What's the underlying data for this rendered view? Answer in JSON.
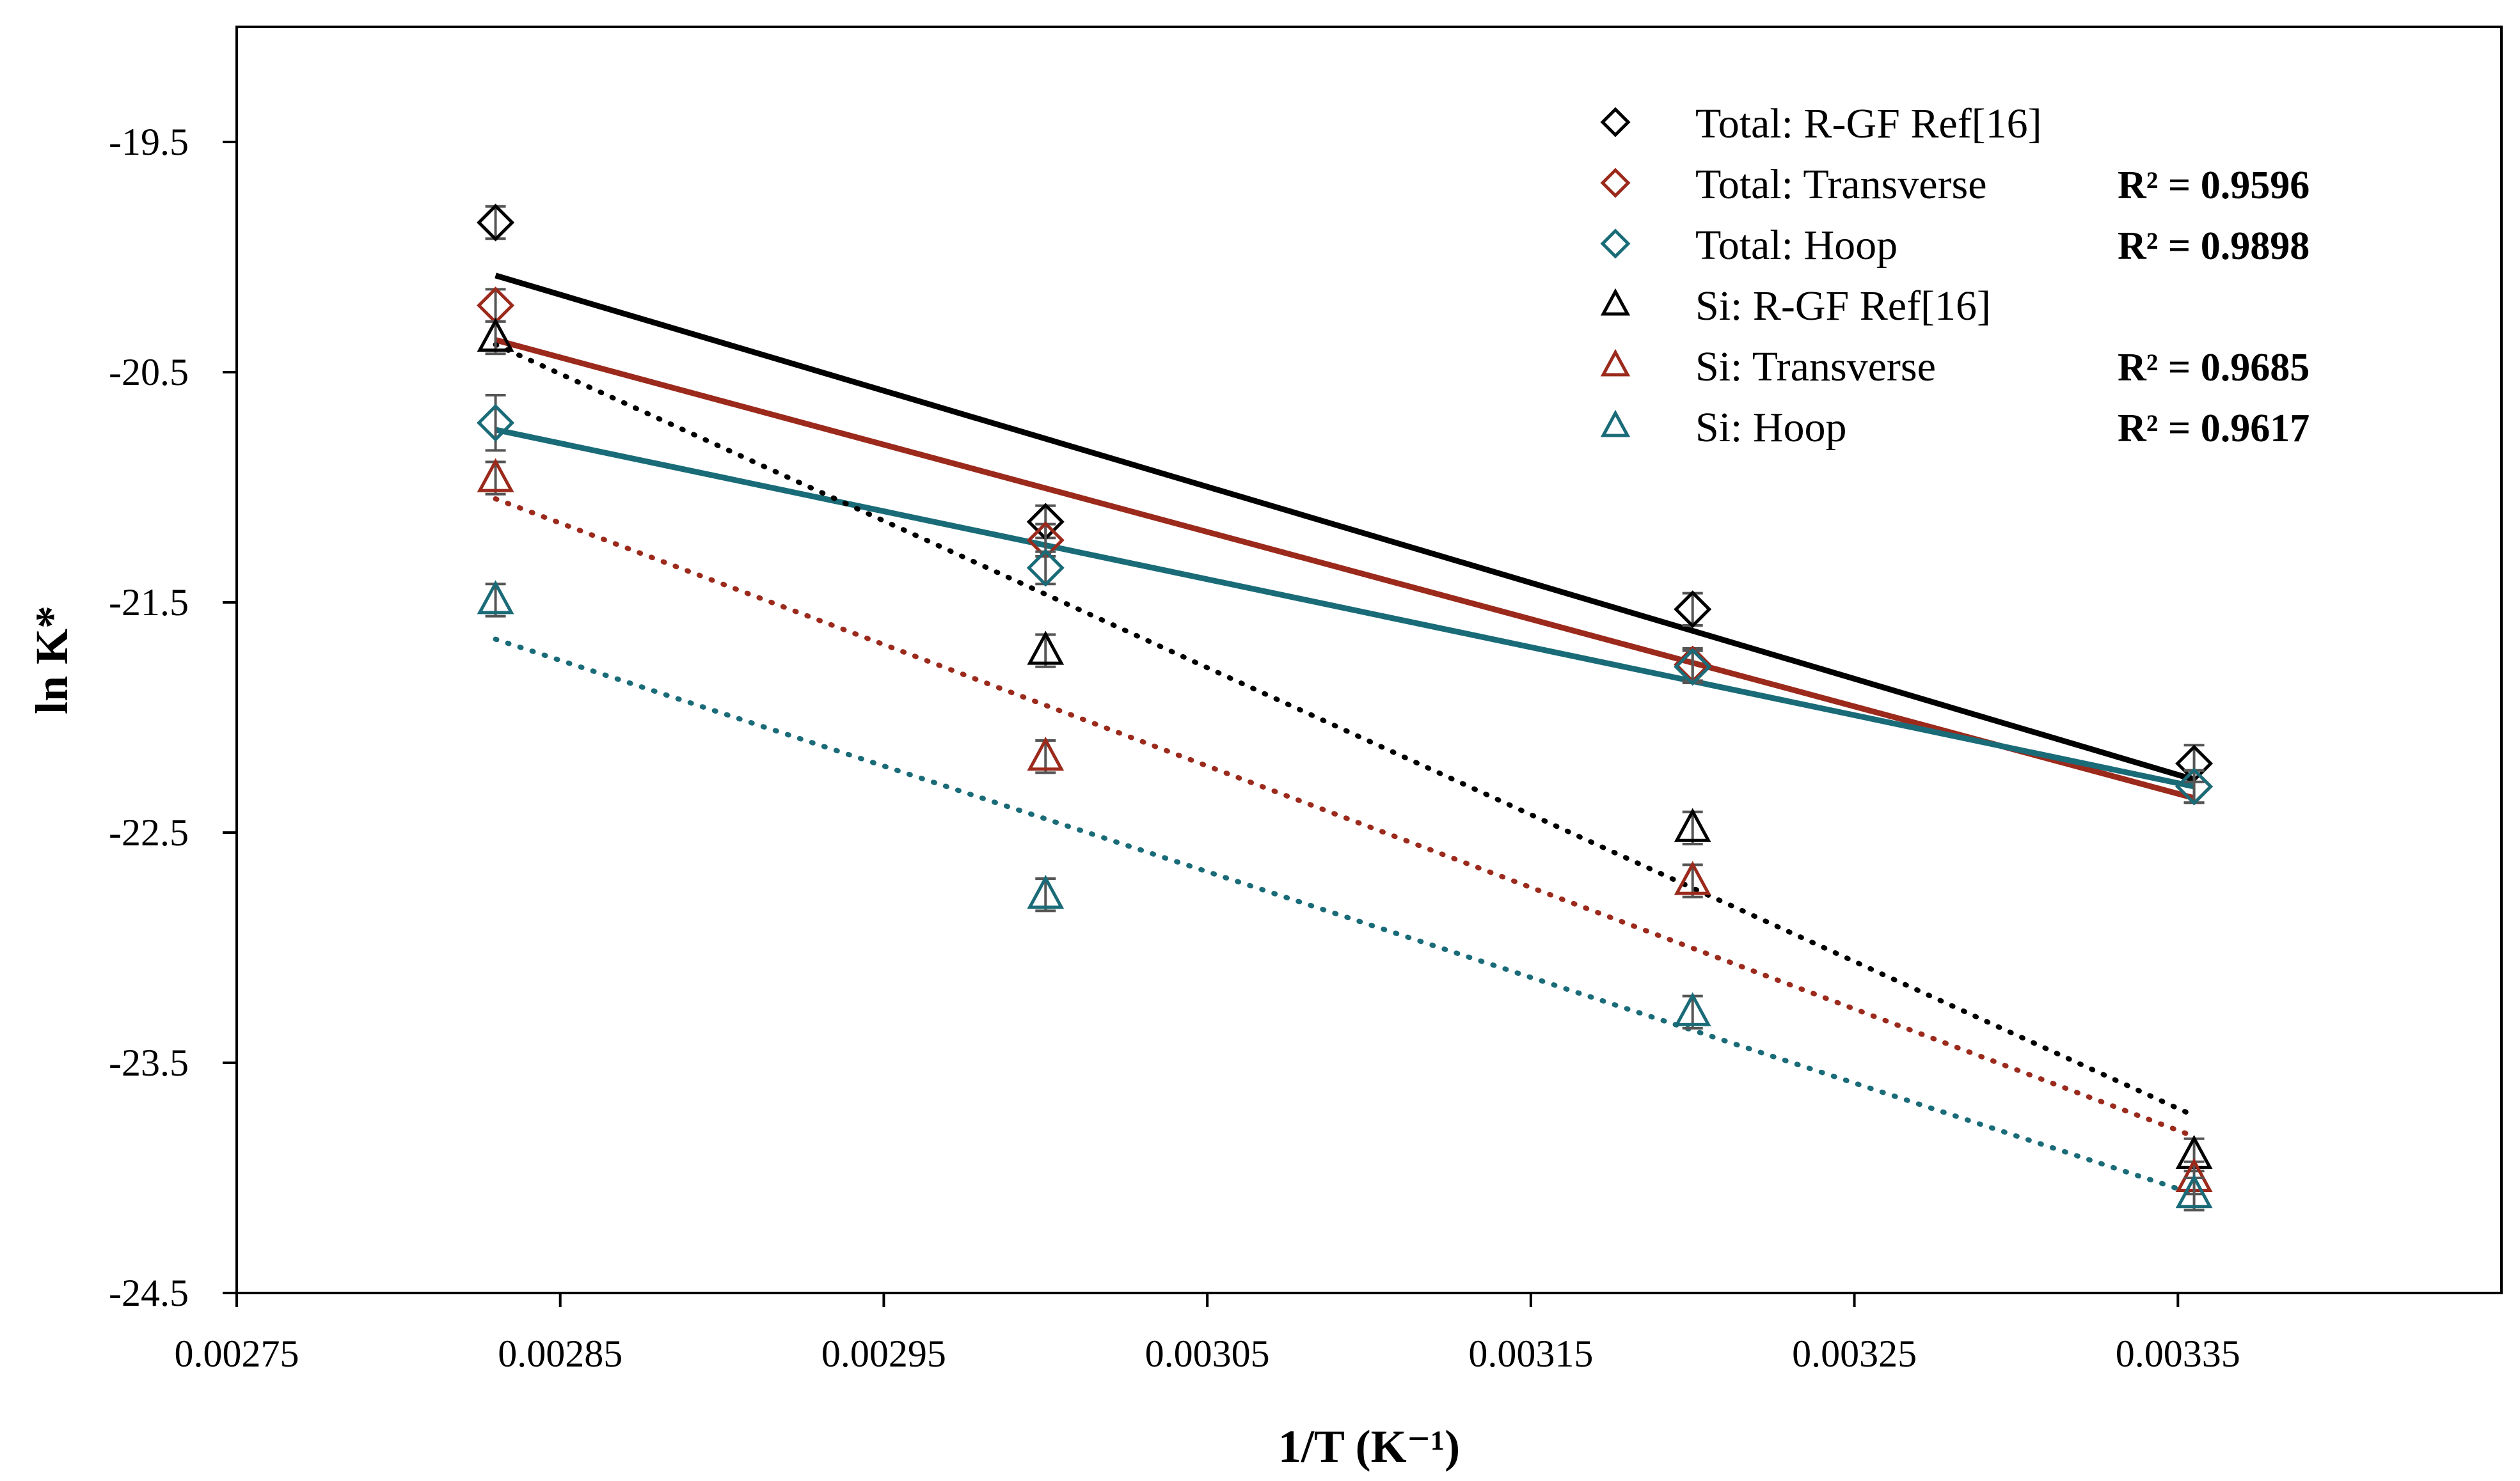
{
  "chart_data": {
    "type": "scatter",
    "xlabel": "1/T (K⁻¹)",
    "ylabel": "ln K*",
    "xlim": [
      0.00275,
      0.00345
    ],
    "ylim": [
      -24.5,
      -19.0
    ],
    "x_ticks": [
      {
        "value": 0.00275,
        "label": "0.00275"
      },
      {
        "value": 0.00285,
        "label": "0.00285"
      },
      {
        "value": 0.00295,
        "label": "0.00295"
      },
      {
        "value": 0.00305,
        "label": "0.00305"
      },
      {
        "value": 0.00315,
        "label": "0.00315"
      },
      {
        "value": 0.00325,
        "label": "0.00325"
      },
      {
        "value": 0.00335,
        "label": "0.00335"
      }
    ],
    "y_ticks": [
      {
        "value": -19.5,
        "label": "-19.5"
      },
      {
        "value": -20.5,
        "label": "-20.5"
      },
      {
        "value": -21.5,
        "label": "-21.5"
      },
      {
        "value": -22.5,
        "label": "-22.5"
      },
      {
        "value": -23.5,
        "label": "-23.5"
      },
      {
        "value": -24.5,
        "label": "-24.5"
      }
    ],
    "grid": false,
    "legend_position": "top-right",
    "series": [
      {
        "name": "Total: R-GF Ref[16]",
        "marker": "diamond",
        "color": "#000000",
        "r2": "",
        "x": [
          0.00283,
          0.003,
          0.0032,
          0.003355
        ],
        "y": [
          -19.85,
          -21.15,
          -21.53,
          -22.2
        ],
        "err": [
          0.07,
          0.07,
          0.07,
          0.08
        ],
        "fit": {
          "style": "solid",
          "y_start": -20.08,
          "y_end": -22.27
        }
      },
      {
        "name": "Total: Transverse",
        "marker": "diamond",
        "color": "#9b2a1c",
        "r2": "R² = 0.9596",
        "x": [
          0.00283,
          0.003,
          0.0032,
          0.003355
        ],
        "y": [
          -20.21,
          -21.23,
          -21.77,
          -22.3
        ],
        "err": [
          0.07,
          0.07,
          0.07,
          0.07
        ],
        "fit": {
          "style": "solid",
          "y_start": -20.36,
          "y_end": -22.35
        }
      },
      {
        "name": "Total: Hoop",
        "marker": "diamond",
        "color": "#1a6b78",
        "r2": "R² = 0.9898",
        "x": [
          0.00283,
          0.003,
          0.0032,
          0.003355
        ],
        "y": [
          -20.72,
          -21.35,
          -21.78,
          -22.3
        ],
        "err": [
          0.12,
          0.07,
          0.07,
          0.07
        ],
        "fit": {
          "style": "solid",
          "y_start": -20.75,
          "y_end": -22.3
        }
      },
      {
        "name": "Si: R-GF Ref[16]",
        "marker": "triangle",
        "color": "#000000",
        "r2": "",
        "x": [
          0.00283,
          0.003,
          0.0032,
          0.003355
        ],
        "y": [
          -20.35,
          -21.71,
          -22.48,
          -23.9
        ],
        "err": [
          0.07,
          0.07,
          0.07,
          0.07
        ],
        "fit": {
          "style": "dotted",
          "y_start": -20.38,
          "y_end": -23.73
        }
      },
      {
        "name": "Si: Transverse",
        "marker": "triangle",
        "color": "#9b2a1c",
        "r2": "R² = 0.9685",
        "x": [
          0.00283,
          0.003,
          0.0032,
          0.003355
        ],
        "y": [
          -20.96,
          -22.17,
          -22.71,
          -24.0
        ],
        "err": [
          0.07,
          0.07,
          0.07,
          0.07
        ],
        "fit": {
          "style": "dotted",
          "y_start": -21.05,
          "y_end": -23.82
        }
      },
      {
        "name": "Si: Hoop",
        "marker": "triangle",
        "color": "#1a6b78",
        "r2": "R² = 0.9617",
        "x": [
          0.00283,
          0.003,
          0.0032,
          0.003355
        ],
        "y": [
          -21.49,
          -22.77,
          -23.28,
          -24.07
        ],
        "err": [
          0.07,
          0.07,
          0.07,
          0.07
        ],
        "fit": {
          "style": "dotted",
          "y_start": -21.66,
          "y_end": -24.07
        }
      }
    ]
  }
}
